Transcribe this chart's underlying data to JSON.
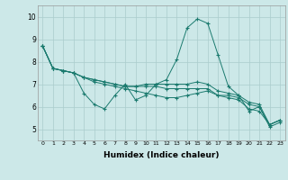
{
  "xlabel": "Humidex (Indice chaleur)",
  "xlim": [
    -0.5,
    23.5
  ],
  "ylim": [
    4.5,
    10.5
  ],
  "xticks": [
    0,
    1,
    2,
    3,
    4,
    5,
    6,
    7,
    8,
    9,
    10,
    11,
    12,
    13,
    14,
    15,
    16,
    17,
    18,
    19,
    20,
    21,
    22,
    23
  ],
  "yticks": [
    5,
    6,
    7,
    8,
    9,
    10
  ],
  "bg_color": "#cce8e8",
  "grid_color": "#aacccc",
  "line_color": "#1a7a6e",
  "series": [
    [
      8.7,
      7.7,
      7.6,
      7.5,
      6.6,
      6.1,
      5.9,
      6.5,
      7.0,
      6.3,
      6.5,
      7.0,
      7.2,
      8.1,
      9.5,
      9.9,
      9.7,
      8.3,
      6.9,
      6.5,
      5.8,
      6.0,
      5.1,
      5.3
    ],
    [
      8.7,
      7.7,
      7.6,
      7.5,
      7.3,
      7.1,
      7.0,
      6.9,
      6.8,
      6.7,
      6.6,
      6.5,
      6.4,
      6.4,
      6.5,
      6.6,
      6.7,
      6.5,
      6.4,
      6.3,
      5.9,
      5.8,
      5.2,
      5.4
    ],
    [
      8.7,
      7.7,
      7.6,
      7.5,
      7.3,
      7.2,
      7.1,
      7.0,
      6.9,
      6.9,
      6.9,
      6.9,
      6.8,
      6.8,
      6.8,
      6.8,
      6.8,
      6.5,
      6.5,
      6.4,
      6.1,
      6.0,
      5.2,
      5.4
    ],
    [
      8.7,
      7.7,
      7.6,
      7.5,
      7.3,
      7.2,
      7.1,
      7.0,
      6.9,
      6.9,
      7.0,
      7.0,
      7.0,
      7.0,
      7.0,
      7.1,
      7.0,
      6.7,
      6.6,
      6.5,
      6.2,
      6.1,
      5.2,
      5.4
    ]
  ]
}
